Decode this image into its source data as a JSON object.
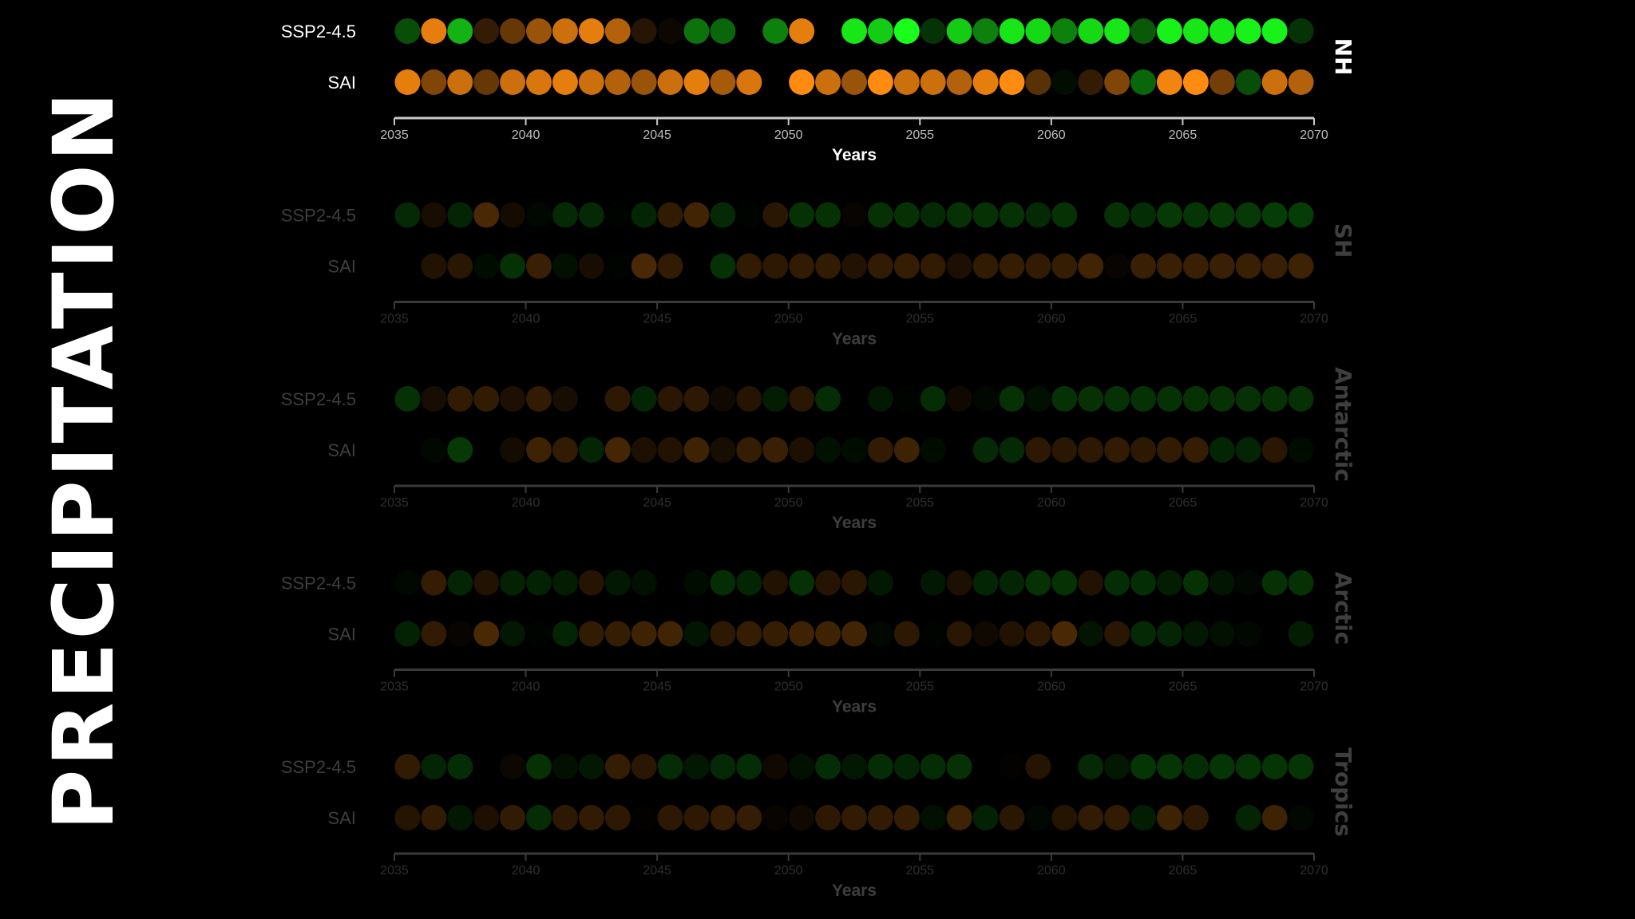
{
  "page_title": "PRECIPITATION",
  "colors": {
    "positive": "#1aff1a",
    "negative": "#ff8c10",
    "axis": "#c8c8c8",
    "background": "#000000"
  },
  "chart_data": [
    {
      "type": "scatter",
      "region": "NH",
      "active": true,
      "xlabel": "Years",
      "xlim": [
        2035,
        2070
      ],
      "xticks": [
        2035,
        2040,
        2045,
        2050,
        2055,
        2060,
        2065,
        2070
      ],
      "series": [
        {
          "name": "SSP2-4.5",
          "x": [
            2035,
            2036,
            2037,
            2038,
            2039,
            2040,
            2041,
            2042,
            2043,
            2044,
            2045,
            2046,
            2047,
            2048,
            2049,
            2050,
            2051,
            2052,
            2053,
            2054,
            2055,
            2056,
            2057,
            2058,
            2059,
            2060,
            2061,
            2062,
            2063,
            2064,
            2065,
            2066,
            2067,
            2068,
            2069
          ],
          "values": [
            0.3,
            -0.9,
            0.7,
            -0.2,
            -0.4,
            -0.6,
            -0.8,
            -0.9,
            -0.7,
            -0.15,
            -0.05,
            0.45,
            0.4,
            0,
            0.5,
            -0.9,
            0,
            0.9,
            0.8,
            1,
            0.2,
            0.8,
            0.5,
            0.9,
            0.85,
            0.5,
            0.85,
            0.9,
            0.35,
            0.95,
            0.9,
            0.9,
            0.95,
            0.95,
            0.2
          ]
        },
        {
          "name": "SAI",
          "x": [
            2035,
            2036,
            2037,
            2038,
            2039,
            2040,
            2041,
            2042,
            2043,
            2044,
            2045,
            2046,
            2047,
            2048,
            2049,
            2050,
            2051,
            2052,
            2053,
            2054,
            2055,
            2056,
            2057,
            2058,
            2059,
            2060,
            2061,
            2062,
            2063,
            2064,
            2065,
            2066,
            2067,
            2068,
            2069
          ],
          "values": [
            -0.9,
            -0.5,
            -0.8,
            -0.4,
            -0.8,
            -0.85,
            -0.9,
            -0.8,
            -0.7,
            -0.6,
            -0.8,
            -0.9,
            -0.65,
            -0.85,
            0,
            -1,
            -0.8,
            -0.6,
            -1,
            -0.8,
            -0.8,
            -0.7,
            -0.9,
            -1,
            -0.35,
            0.05,
            -0.2,
            -0.5,
            0.4,
            -0.95,
            -1,
            -0.45,
            0.3,
            -0.8,
            -0.7
          ]
        }
      ]
    },
    {
      "type": "scatter",
      "region": "SH",
      "active": false,
      "xlabel": "Years",
      "xlim": [
        2035,
        2070
      ],
      "xticks": [
        2035,
        2040,
        2045,
        2050,
        2055,
        2060,
        2065,
        2070
      ],
      "series": [
        {
          "name": "SSP2-4.5",
          "x": [
            2035,
            2036,
            2037,
            2038,
            2039,
            2040,
            2041,
            2042,
            2043,
            2044,
            2045,
            2046,
            2047,
            2048,
            2049,
            2050,
            2051,
            2052,
            2053,
            2054,
            2055,
            2056,
            2057,
            2058,
            2059,
            2060,
            2061,
            2062,
            2063,
            2064,
            2065,
            2066,
            2067,
            2068,
            2069
          ],
          "values": [
            0.5,
            -0.3,
            0.45,
            -0.9,
            -0.25,
            0.1,
            0.5,
            0.5,
            0.05,
            0.45,
            -0.6,
            -0.8,
            0.5,
            0.05,
            -0.5,
            0.6,
            0.6,
            -0.1,
            0.6,
            0.6,
            0.5,
            0.6,
            0.6,
            0.6,
            0.5,
            0.6,
            0,
            0.6,
            0.55,
            0.7,
            0.65,
            0.7,
            0.7,
            0.75,
            0.75
          ]
        },
        {
          "name": "SAI",
          "x": [
            2035,
            2036,
            2037,
            2038,
            2039,
            2040,
            2041,
            2042,
            2043,
            2044,
            2045,
            2046,
            2047,
            2048,
            2049,
            2050,
            2051,
            2052,
            2053,
            2054,
            2055,
            2056,
            2057,
            2058,
            2059,
            2060,
            2061,
            2062,
            2063,
            2064,
            2065,
            2066,
            2067,
            2068,
            2069
          ],
          "values": [
            0,
            -0.4,
            -0.5,
            0.15,
            0.6,
            -0.7,
            0.2,
            -0.3,
            0.05,
            -0.9,
            -0.6,
            0,
            0.6,
            -0.6,
            -0.55,
            -0.6,
            -0.6,
            -0.4,
            -0.6,
            -0.65,
            -0.6,
            -0.35,
            -0.6,
            -0.65,
            -0.6,
            -0.65,
            -0.8,
            -0.1,
            -0.7,
            -0.7,
            -0.7,
            -0.7,
            -0.7,
            -0.7,
            -0.75
          ]
        }
      ]
    },
    {
      "type": "scatter",
      "region": "Antarctic",
      "active": false,
      "xlabel": "Years",
      "xlim": [
        2035,
        2070
      ],
      "xticks": [
        2035,
        2040,
        2045,
        2050,
        2055,
        2060,
        2065,
        2070
      ],
      "series": [
        {
          "name": "SSP2-4.5",
          "x": [
            2035,
            2036,
            2037,
            2038,
            2039,
            2040,
            2041,
            2042,
            2043,
            2044,
            2045,
            2046,
            2047,
            2048,
            2049,
            2050,
            2051,
            2052,
            2053,
            2054,
            2055,
            2056,
            2057,
            2058,
            2059,
            2060,
            2061,
            2062,
            2063,
            2064,
            2065,
            2066,
            2067,
            2068,
            2069
          ],
          "values": [
            0.6,
            -0.3,
            -0.6,
            -0.6,
            -0.35,
            -0.6,
            -0.3,
            0,
            -0.55,
            0.45,
            -0.5,
            -0.55,
            -0.2,
            -0.45,
            0.35,
            -0.5,
            0.55,
            0,
            0.3,
            0.05,
            0.55,
            -0.2,
            0.1,
            0.6,
            0.2,
            0.6,
            0.6,
            0.6,
            0.6,
            0.6,
            0.6,
            0.6,
            0.6,
            0.6,
            0.6
          ]
        },
        {
          "name": "SAI",
          "x": [
            2035,
            2036,
            2037,
            2038,
            2039,
            2040,
            2041,
            2042,
            2043,
            2044,
            2045,
            2046,
            2047,
            2048,
            2049,
            2050,
            2051,
            2052,
            2053,
            2054,
            2055,
            2056,
            2057,
            2058,
            2059,
            2060,
            2061,
            2062,
            2063,
            2064,
            2065,
            2066,
            2067,
            2068,
            2069
          ],
          "values": [
            0,
            0.1,
            0.7,
            0,
            -0.25,
            -0.75,
            -0.6,
            0.45,
            -0.85,
            -0.35,
            -0.4,
            -0.75,
            -0.3,
            -0.65,
            -0.7,
            -0.35,
            0.2,
            0.15,
            -0.6,
            -0.75,
            0.15,
            0,
            0.5,
            0.5,
            -0.55,
            -0.5,
            -0.55,
            -0.6,
            -0.55,
            -0.6,
            -0.65,
            0.45,
            0.45,
            -0.5,
            0.15
          ]
        }
      ]
    },
    {
      "type": "scatter",
      "region": "Arctic",
      "active": false,
      "xlabel": "Years",
      "xlim": [
        2035,
        2070
      ],
      "xticks": [
        2035,
        2040,
        2045,
        2050,
        2055,
        2060,
        2065,
        2070
      ],
      "series": [
        {
          "name": "SSP2-4.5",
          "x": [
            2035,
            2036,
            2037,
            2038,
            2039,
            2040,
            2041,
            2042,
            2043,
            2044,
            2045,
            2046,
            2047,
            2048,
            2049,
            2050,
            2051,
            2052,
            2053,
            2054,
            2055,
            2056,
            2057,
            2058,
            2059,
            2060,
            2061,
            2062,
            2063,
            2064,
            2065,
            2066,
            2067,
            2068,
            2069
          ],
          "values": [
            0.1,
            -0.65,
            0.45,
            -0.4,
            0.4,
            0.4,
            0.35,
            -0.45,
            0.3,
            0.2,
            0,
            0.15,
            0.55,
            0.45,
            -0.4,
            0.6,
            -0.45,
            -0.5,
            0.3,
            0,
            0.3,
            -0.35,
            0.45,
            0.45,
            0.6,
            0.6,
            -0.4,
            0.55,
            0.55,
            0.35,
            0.6,
            0.25,
            0.1,
            0.6,
            0.6
          ]
        },
        {
          "name": "SAI",
          "x": [
            2035,
            2036,
            2037,
            2038,
            2039,
            2040,
            2041,
            2042,
            2043,
            2044,
            2045,
            2046,
            2047,
            2048,
            2049,
            2050,
            2051,
            2052,
            2053,
            2054,
            2055,
            2056,
            2057,
            2058,
            2059,
            2060,
            2061,
            2062,
            2063,
            2064,
            2065,
            2066,
            2067,
            2068,
            2069
          ],
          "values": [
            0.4,
            -0.6,
            -0.1,
            -0.9,
            0.3,
            0.05,
            0.45,
            -0.6,
            -0.65,
            -0.75,
            -0.8,
            0.25,
            -0.55,
            -0.65,
            -0.65,
            -0.75,
            -0.75,
            -0.8,
            0.1,
            -0.55,
            0.05,
            -0.5,
            -0.2,
            -0.4,
            -0.55,
            -0.9,
            0.25,
            -0.5,
            0.5,
            0.45,
            0.3,
            0.2,
            0.1,
            0,
            0.35
          ]
        }
      ]
    },
    {
      "type": "scatter",
      "region": "Tropics",
      "active": false,
      "xlabel": "Years",
      "xlim": [
        2035,
        2070
      ],
      "xticks": [
        2035,
        2040,
        2045,
        2050,
        2055,
        2060,
        2065,
        2070
      ],
      "series": [
        {
          "name": "SSP2-4.5",
          "x": [
            2035,
            2036,
            2037,
            2038,
            2039,
            2040,
            2041,
            2042,
            2043,
            2044,
            2045,
            2046,
            2047,
            2048,
            2049,
            2050,
            2051,
            2052,
            2053,
            2054,
            2055,
            2056,
            2057,
            2058,
            2059,
            2060,
            2061,
            2062,
            2063,
            2064,
            2065,
            2066,
            2067,
            2068,
            2069
          ],
          "values": [
            -0.6,
            0.45,
            0.55,
            0,
            -0.15,
            0.6,
            0.2,
            0.3,
            -0.65,
            -0.5,
            0.55,
            0.3,
            0.5,
            0.55,
            -0.2,
            0.2,
            0.55,
            0.3,
            0.55,
            0.45,
            0.55,
            0.6,
            0,
            -0.05,
            -0.45,
            0,
            0.5,
            0.3,
            0.65,
            0.65,
            0.55,
            0.65,
            0.65,
            0.65,
            0.65
          ]
        },
        {
          "name": "SAI",
          "x": [
            2035,
            2036,
            2037,
            2038,
            2039,
            2040,
            2041,
            2042,
            2043,
            2044,
            2045,
            2046,
            2047,
            2048,
            2049,
            2050,
            2051,
            2052,
            2053,
            2054,
            2055,
            2056,
            2057,
            2058,
            2059,
            2060,
            2061,
            2062,
            2063,
            2064,
            2065,
            2066,
            2067,
            2068,
            2069
          ],
          "values": [
            -0.45,
            -0.6,
            0.3,
            -0.35,
            -0.6,
            0.55,
            -0.55,
            -0.6,
            -0.55,
            -0.05,
            -0.55,
            -0.55,
            -0.65,
            -0.65,
            -0.1,
            -0.2,
            -0.55,
            -0.6,
            -0.6,
            -0.65,
            0.2,
            -0.75,
            0.4,
            -0.5,
            0.1,
            -0.45,
            -0.6,
            -0.6,
            0.35,
            -0.75,
            -0.55,
            0,
            0.45,
            -0.75,
            0.1
          ]
        }
      ]
    }
  ]
}
